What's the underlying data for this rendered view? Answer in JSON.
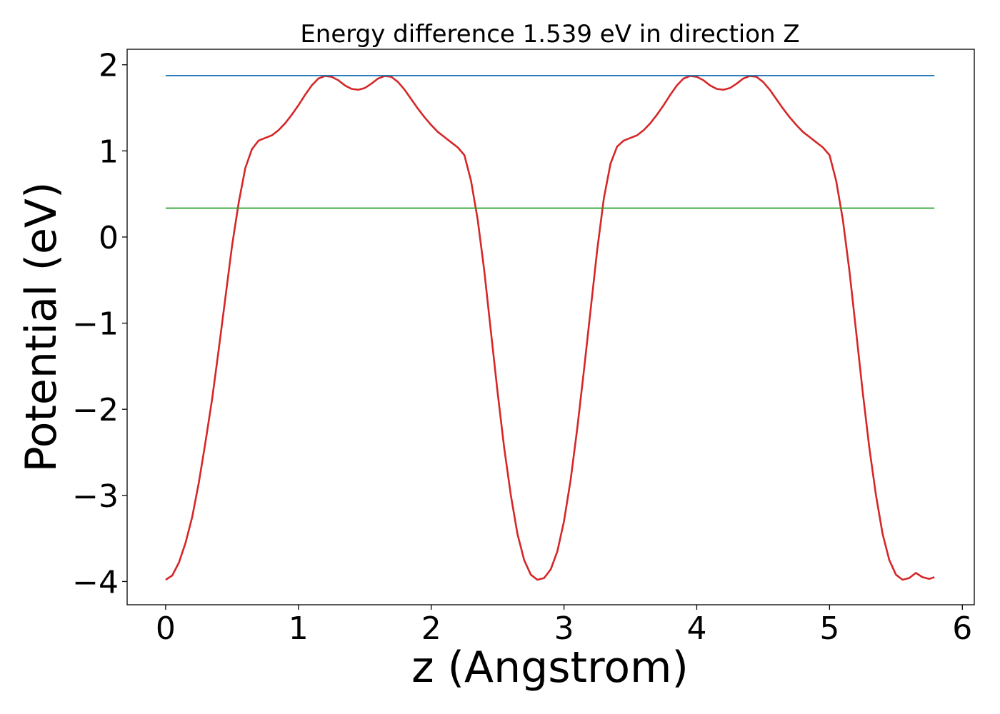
{
  "chart_data": {
    "type": "line",
    "title": "Energy difference 1.539 eV in direction Z",
    "xlabel": "z (Angstrom)",
    "ylabel": "Potential (eV)",
    "xlim": [
      -0.29,
      6.09
    ],
    "ylim": [
      -4.27,
      2.18
    ],
    "grid": false,
    "legend": "none",
    "xticks": [
      0,
      1,
      2,
      3,
      4,
      5,
      6
    ],
    "xtick_labels": [
      "0",
      "1",
      "2",
      "3",
      "4",
      "5",
      "6"
    ],
    "yticks": [
      2,
      1,
      0,
      -1,
      -2,
      -3,
      -4
    ],
    "ytick_labels": [
      "2",
      "1",
      "0",
      "−1",
      "−2",
      "−3",
      "−4"
    ],
    "series": [
      {
        "color": "#d62728",
        "x": [
          0.0,
          0.05,
          0.1,
          0.15,
          0.2,
          0.25,
          0.3,
          0.35,
          0.4,
          0.45,
          0.5,
          0.55,
          0.6,
          0.65,
          0.7,
          0.75,
          0.8,
          0.85,
          0.9,
          0.95,
          1.0,
          1.05,
          1.1,
          1.15,
          1.2,
          1.25,
          1.3,
          1.35,
          1.4,
          1.45,
          1.5,
          1.55,
          1.6,
          1.65,
          1.7,
          1.75,
          1.8,
          1.85,
          1.9,
          1.95,
          2.0,
          2.05,
          2.1,
          2.15,
          2.2,
          2.25,
          2.3,
          2.35,
          2.4,
          2.45,
          2.5,
          2.55,
          2.6,
          2.65,
          2.7,
          2.75,
          2.8,
          2.85,
          2.9,
          2.95,
          3.0,
          3.05,
          3.1,
          3.15,
          3.2,
          3.25,
          3.3,
          3.35,
          3.4,
          3.45,
          3.5,
          3.55,
          3.6,
          3.65,
          3.7,
          3.75,
          3.8,
          3.85,
          3.9,
          3.95,
          4.0,
          4.05,
          4.1,
          4.15,
          4.2,
          4.25,
          4.3,
          4.35,
          4.4,
          4.45,
          4.5,
          4.55,
          4.6,
          4.65,
          4.7,
          4.75,
          4.8,
          4.85,
          4.9,
          4.95,
          5.0,
          5.05,
          5.1,
          5.15,
          5.2,
          5.25,
          5.3,
          5.35,
          5.4,
          5.45,
          5.5,
          5.55,
          5.6,
          5.65,
          5.7,
          5.75,
          5.79
        ],
        "y": [
          -3.98,
          -3.93,
          -3.78,
          -3.55,
          -3.25,
          -2.85,
          -2.38,
          -1.88,
          -1.3,
          -0.7,
          -0.1,
          0.4,
          0.8,
          1.02,
          1.12,
          1.15,
          1.18,
          1.24,
          1.32,
          1.42,
          1.53,
          1.65,
          1.76,
          1.84,
          1.87,
          1.86,
          1.82,
          1.76,
          1.72,
          1.71,
          1.73,
          1.78,
          1.84,
          1.87,
          1.86,
          1.8,
          1.71,
          1.6,
          1.49,
          1.39,
          1.3,
          1.22,
          1.16,
          1.1,
          1.04,
          0.95,
          0.65,
          0.2,
          -0.4,
          -1.1,
          -1.8,
          -2.45,
          -3.0,
          -3.45,
          -3.75,
          -3.92,
          -3.98,
          -3.96,
          -3.86,
          -3.65,
          -3.3,
          -2.82,
          -2.22,
          -1.55,
          -0.85,
          -0.15,
          0.45,
          0.85,
          1.05,
          1.12,
          1.15,
          1.18,
          1.24,
          1.32,
          1.42,
          1.53,
          1.65,
          1.76,
          1.84,
          1.87,
          1.86,
          1.82,
          1.76,
          1.72,
          1.71,
          1.73,
          1.78,
          1.84,
          1.87,
          1.86,
          1.8,
          1.71,
          1.6,
          1.49,
          1.39,
          1.3,
          1.22,
          1.16,
          1.1,
          1.04,
          0.95,
          0.65,
          0.2,
          -0.4,
          -1.1,
          -1.8,
          -2.45,
          -3.0,
          -3.45,
          -3.75,
          -3.92,
          -3.98,
          -3.96,
          -3.9,
          -3.95,
          -3.97,
          -3.95
        ]
      },
      {
        "color": "#1f77b4",
        "x": [
          0.0,
          5.79
        ],
        "y": [
          1.874,
          1.874
        ]
      },
      {
        "color": "#2ca02c",
        "x": [
          0.0,
          5.79
        ],
        "y": [
          0.335,
          0.335
        ]
      }
    ]
  }
}
